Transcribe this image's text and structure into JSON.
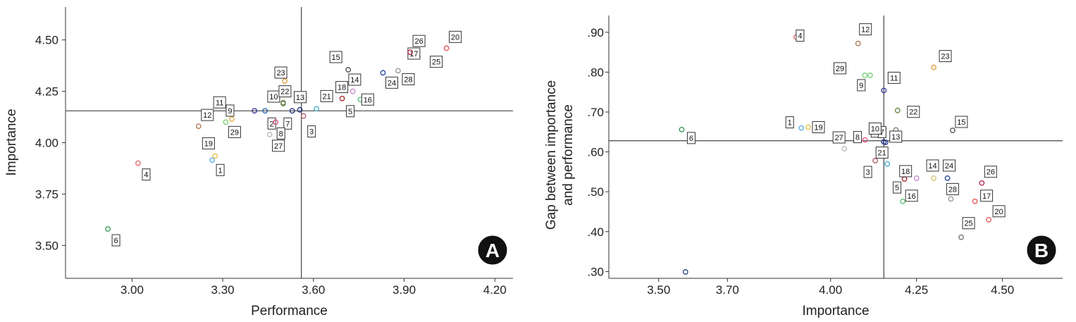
{
  "chart_data": [
    {
      "type": "scatter",
      "panel_label": "A",
      "xlabel": "Performance",
      "ylabel": "Importance",
      "xlim": [
        2.78,
        4.26
      ],
      "ylim": [
        3.34,
        4.66
      ],
      "xticks": [
        "3.00",
        "3.30",
        "3.60",
        "3.90",
        "4.20"
      ],
      "yticks": [
        "3.50",
        "3.75",
        "4.00",
        "4.25",
        "4.50"
      ],
      "xtick_values": [
        3.0,
        3.3,
        3.6,
        3.9,
        4.2
      ],
      "ytick_values": [
        3.5,
        3.75,
        4.0,
        4.25,
        4.5
      ],
      "ref_x": 3.56,
      "ref_y": 4.155,
      "points": [
        {
          "label": "1",
          "x": 3.265,
          "y": 3.915,
          "color": "#5aaee0"
        },
        {
          "label": "2",
          "x": 3.44,
          "y": 4.155,
          "color": "#2b6cb0"
        },
        {
          "label": "3",
          "x": 3.567,
          "y": 4.13,
          "color": "#b45a6a"
        },
        {
          "label": "4",
          "x": 3.02,
          "y": 3.9,
          "color": "#e06a6a"
        },
        {
          "label": "5",
          "x": 3.695,
          "y": 4.215,
          "color": "#b03030"
        },
        {
          "label": "6",
          "x": 2.92,
          "y": 3.58,
          "color": "#3a9a5a"
        },
        {
          "label": "7",
          "x": 3.53,
          "y": 4.155,
          "color": "#2b3a8a"
        },
        {
          "label": "8",
          "x": 3.475,
          "y": 4.1,
          "color": "#e05a8a"
        },
        {
          "label": "9",
          "x": 3.33,
          "y": 4.115,
          "color": "#e6b04a"
        },
        {
          "label": "10",
          "x": 3.5,
          "y": 4.19,
          "color": "#7a8a6a"
        },
        {
          "label": "11",
          "x": 3.405,
          "y": 4.155,
          "color": "#3a3a9a"
        },
        {
          "label": "12",
          "x": 3.22,
          "y": 4.08,
          "color": "#b07a5a"
        },
        {
          "label": "13",
          "x": 3.555,
          "y": 4.16,
          "color": "#2b3a8a"
        },
        {
          "label": "14",
          "x": 3.74,
          "y": 4.3,
          "color": "#d6c47a"
        },
        {
          "label": "15",
          "x": 3.715,
          "y": 4.355,
          "color": "#555555"
        },
        {
          "label": "16",
          "x": 3.755,
          "y": 4.21,
          "color": "#5ac47a"
        },
        {
          "label": "17",
          "x": 3.945,
          "y": 4.42,
          "color": "#e05a5a"
        },
        {
          "label": "18",
          "x": 3.73,
          "y": 4.25,
          "color": "#d08ad0"
        },
        {
          "label": "19",
          "x": 3.275,
          "y": 3.935,
          "color": "#e6c44a"
        },
        {
          "label": "20",
          "x": 4.04,
          "y": 4.46,
          "color": "#e05a5a"
        },
        {
          "label": "21",
          "x": 3.61,
          "y": 4.165,
          "color": "#4ab0d0"
        },
        {
          "label": "22",
          "x": 3.5,
          "y": 4.195,
          "color": "#6a8a4a"
        },
        {
          "label": "23",
          "x": 3.505,
          "y": 4.3,
          "color": "#e6a040"
        },
        {
          "label": "24",
          "x": 3.83,
          "y": 4.34,
          "color": "#2b4aa0"
        },
        {
          "label": "25",
          "x": 4.005,
          "y": 4.38,
          "color": "#777777"
        },
        {
          "label": "26",
          "x": 3.92,
          "y": 4.44,
          "color": "#b03050"
        },
        {
          "label": "27",
          "x": 3.455,
          "y": 4.04,
          "color": "#bbbbbb"
        },
        {
          "label": "28",
          "x": 3.88,
          "y": 4.35,
          "color": "#999999"
        },
        {
          "label": "29",
          "x": 3.31,
          "y": 4.1,
          "color": "#7ad07a"
        }
      ]
    },
    {
      "type": "scatter",
      "panel_label": "B",
      "xlabel": "Importance",
      "ylabel": [
        "Gap between importance",
        "and performance"
      ],
      "xlim": [
        3.355,
        4.675
      ],
      "ylim": [
        0.283,
        0.942
      ],
      "xticks": [
        "3.50",
        "3.70",
        "4.00",
        "4.25",
        "4.50"
      ],
      "yticks": [
        ".30",
        ".40",
        ".50",
        ".60",
        ".70",
        ".80",
        ".90"
      ],
      "xtick_values": [
        3.5,
        3.7,
        4.0,
        4.25,
        4.5
      ],
      "ytick_values": [
        0.3,
        0.4,
        0.5,
        0.6,
        0.7,
        0.8,
        0.9
      ],
      "ref_x": 4.155,
      "ref_y": 0.628,
      "points": [
        {
          "label": "",
          "x": 3.578,
          "y": 0.299,
          "color": "#2b4a8a"
        },
        {
          "label": "1",
          "x": 3.915,
          "y": 0.66,
          "color": "#5aaee0"
        },
        {
          "label": "2",
          "x": 4.155,
          "y": 0.658,
          "color": "#2b6cb0"
        },
        {
          "label": "3",
          "x": 4.13,
          "y": 0.578,
          "color": "#b45a6a"
        },
        {
          "label": "4",
          "x": 3.9,
          "y": 0.888,
          "color": "#e06a6a"
        },
        {
          "label": "5",
          "x": 4.215,
          "y": 0.532,
          "color": "#b03030"
        },
        {
          "label": "6",
          "x": 3.567,
          "y": 0.656,
          "color": "#3a9a5a"
        },
        {
          "label": "7",
          "x": 4.155,
          "y": 0.625,
          "color": "#2b3a8a"
        },
        {
          "label": "8",
          "x": 4.1,
          "y": 0.63,
          "color": "#e05a8a"
        },
        {
          "label": "9",
          "x": 4.115,
          "y": 0.792,
          "color": "#7ad07a"
        },
        {
          "label": "10",
          "x": 4.19,
          "y": 0.655,
          "color": "#7a8a6a"
        },
        {
          "label": "11",
          "x": 4.155,
          "y": 0.754,
          "color": "#3a3a9a"
        },
        {
          "label": "12",
          "x": 4.08,
          "y": 0.872,
          "color": "#b07a5a"
        },
        {
          "label": "13",
          "x": 4.16,
          "y": 0.624,
          "color": "#2b3a8a"
        },
        {
          "label": "14",
          "x": 4.3,
          "y": 0.534,
          "color": "#d6c47a"
        },
        {
          "label": "15",
          "x": 4.355,
          "y": 0.654,
          "color": "#555555"
        },
        {
          "label": "16",
          "x": 4.21,
          "y": 0.476,
          "color": "#5ac47a"
        },
        {
          "label": "17",
          "x": 4.42,
          "y": 0.476,
          "color": "#e05a5a"
        },
        {
          "label": "18",
          "x": 4.25,
          "y": 0.534,
          "color": "#d08ad0"
        },
        {
          "label": "19",
          "x": 3.935,
          "y": 0.662,
          "color": "#e6c44a"
        },
        {
          "label": "20",
          "x": 4.46,
          "y": 0.43,
          "color": "#e05a5a"
        },
        {
          "label": "21",
          "x": 4.165,
          "y": 0.57,
          "color": "#4ab0d0"
        },
        {
          "label": "22",
          "x": 4.195,
          "y": 0.704,
          "color": "#6a8a4a"
        },
        {
          "label": "23",
          "x": 4.3,
          "y": 0.812,
          "color": "#e6a040"
        },
        {
          "label": "24",
          "x": 4.34,
          "y": 0.534,
          "color": "#2b4aa0"
        },
        {
          "label": "25",
          "x": 4.38,
          "y": 0.386,
          "color": "#777777"
        },
        {
          "label": "26",
          "x": 4.44,
          "y": 0.522,
          "color": "#b03050"
        },
        {
          "label": "27",
          "x": 4.04,
          "y": 0.608,
          "color": "#bbbbbb"
        },
        {
          "label": "28",
          "x": 4.35,
          "y": 0.482,
          "color": "#999999"
        },
        {
          "label": "29",
          "x": 4.1,
          "y": 0.792,
          "color": "#7ad07a"
        }
      ]
    }
  ]
}
